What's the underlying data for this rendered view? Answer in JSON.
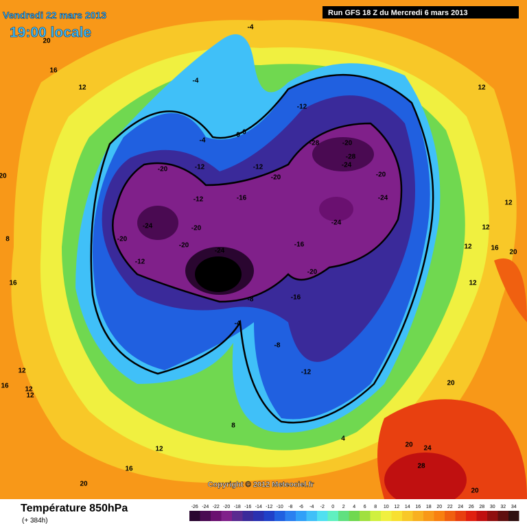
{
  "header": {
    "date": "Vendredi 22 mars 2013",
    "time": "19:00 locale",
    "run": "Run GFS 18 Z du Mercredi 6 mars 2013"
  },
  "map": {
    "copyright": "Copyright © 2012 Meteociel.fr",
    "contour_labels": [
      "-4",
      "20",
      "16",
      "12",
      "-4",
      "-12",
      "12",
      "-4",
      "0",
      "0",
      "-20",
      "-12",
      "-12",
      "-16",
      "-20",
      "-12",
      "-28",
      "-20",
      "-28",
      "-24",
      "-20",
      "-24",
      "-24",
      "-20",
      "-20",
      "-20",
      "-12",
      "-24",
      "-16",
      "-24",
      "-20",
      "-32",
      "-28",
      "-8",
      "-16",
      "-4",
      "-8",
      "-12",
      "20",
      "8",
      "16",
      "12",
      "12",
      "12",
      "16",
      "12",
      "12",
      "16",
      "12",
      "20",
      "12",
      "20",
      "8",
      "12",
      "16",
      "20",
      "4",
      "20",
      "24",
      "28",
      "20"
    ]
  },
  "footer": {
    "title": "Température 850hPa",
    "lead": "(+ 384h)",
    "scale": {
      "labels": [
        "-26",
        "-24",
        "-22",
        "-20",
        "-18",
        "-16",
        "-14",
        "-12",
        "-10",
        "-8",
        "-6",
        "-4",
        "-2",
        "0",
        "2",
        "4",
        "6",
        "8",
        "10",
        "12",
        "14",
        "16",
        "18",
        "20",
        "22",
        "24",
        "26",
        "28",
        "30",
        "32",
        "34"
      ],
      "colors": [
        "#2a0630",
        "#4a0a52",
        "#6a1070",
        "#80208a",
        "#5a2a90",
        "#3a2a9a",
        "#2a30b0",
        "#2040c8",
        "#2060e0",
        "#2a80f0",
        "#30a0f8",
        "#40c0f8",
        "#50e0f0",
        "#60f0c0",
        "#60e080",
        "#70d850",
        "#a0e040",
        "#d0f040",
        "#f0f040",
        "#f8e030",
        "#f8c828",
        "#f8b020",
        "#f89818",
        "#f88010",
        "#f06010",
        "#e84010",
        "#e02010",
        "#c01010",
        "#901010",
        "#601010",
        "#301010"
      ]
    }
  }
}
